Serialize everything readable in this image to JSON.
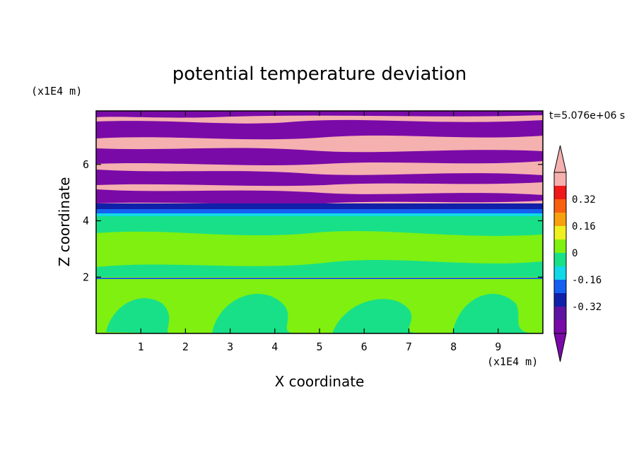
{
  "chart_data": {
    "type": "heatmap",
    "title": "potential temperature deviation",
    "xlabel": "X coordinate",
    "ylabel": "Z coordinate",
    "x_unit_label": "(x1E4 m)",
    "y_unit_label": "(x1E4 m)",
    "time_label": "t=5.076e+06 s",
    "xlim": [
      0,
      10
    ],
    "ylim": [
      0,
      7.9
    ],
    "x_ticks": [
      "1",
      "2",
      "3",
      "4",
      "5",
      "6",
      "7",
      "8",
      "9"
    ],
    "y_ticks": [
      "2",
      "4",
      "6"
    ],
    "colorbar": {
      "levels": [
        -0.48,
        -0.4,
        -0.32,
        -0.24,
        -0.16,
        -0.08,
        0,
        0.08,
        0.16,
        0.24,
        0.32,
        0.4,
        0.48
      ],
      "tick_labels": [
        "0.32",
        "0.16",
        "0",
        "-0.16",
        "-0.32"
      ],
      "tick_values": [
        0.32,
        0.16,
        0,
        -0.16,
        -0.32
      ],
      "colors": [
        "#7a0aa8",
        "#5e14a2",
        "#1020a8",
        "#1560f0",
        "#10d8e8",
        "#18e088",
        "#7ff010",
        "#f0f020",
        "#f8a010",
        "#f86010",
        "#f01818",
        "#f5b0b0"
      ],
      "extend": "both"
    }
  }
}
